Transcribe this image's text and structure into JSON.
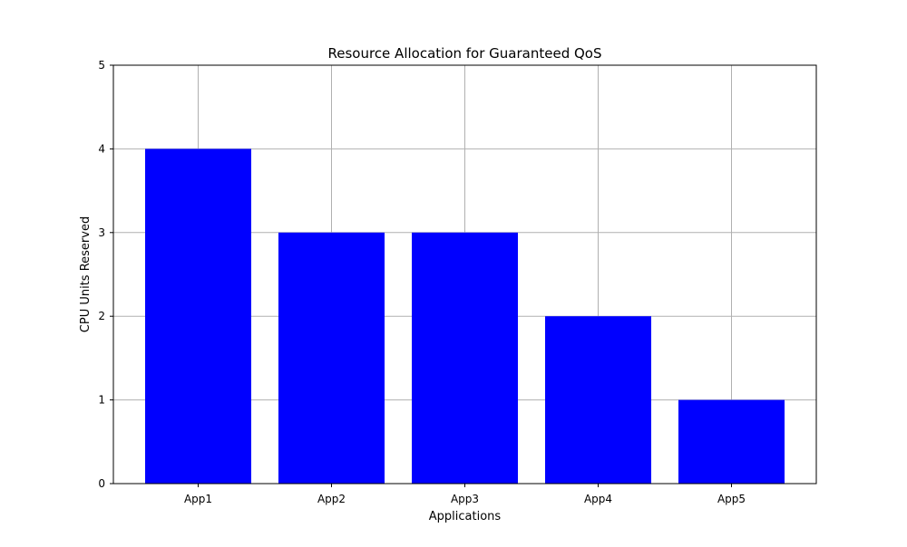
{
  "chart_data": {
    "type": "bar",
    "title": "Resource Allocation for Guaranteed QoS",
    "xlabel": "Applications",
    "ylabel": "CPU Units Reserved",
    "categories": [
      "App1",
      "App2",
      "App3",
      "App4",
      "App5"
    ],
    "values": [
      4,
      3,
      3,
      2,
      1
    ],
    "ylim": [
      0,
      5
    ],
    "yticks": [
      "0",
      "1",
      "2",
      "3",
      "4",
      "5"
    ],
    "bar_color": "#0000ff",
    "grid_color": "#b0b0b0",
    "grid": true
  }
}
